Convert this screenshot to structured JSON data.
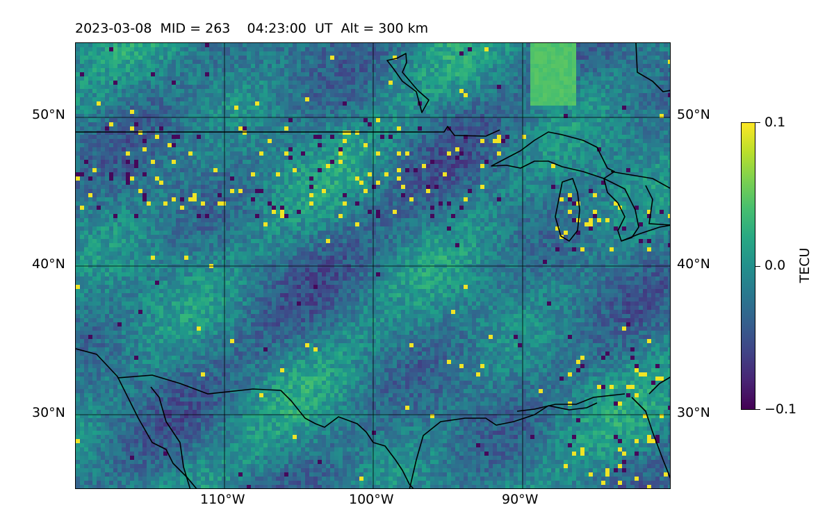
{
  "title": "2023-03-08  MID = 263    04:23:00  UT  Alt = 300 km",
  "map": {
    "lon_range": [
      -120,
      -80
    ],
    "lat_range": [
      25,
      55
    ],
    "grid_lats": [
      30,
      40,
      50
    ],
    "grid_lons": [
      -110,
      -100,
      -90
    ],
    "lat_tick_labels": [
      "50°N",
      "40°N",
      "30°N"
    ],
    "lon_tick_labels": [
      "110°W",
      "100°W",
      "90°W"
    ],
    "colormap": "viridis",
    "vmin": -0.1,
    "vmax": 0.1
  },
  "colorbar": {
    "label": "TECU",
    "ticks": [
      "0.1",
      "0.0",
      "−0.1"
    ]
  }
}
